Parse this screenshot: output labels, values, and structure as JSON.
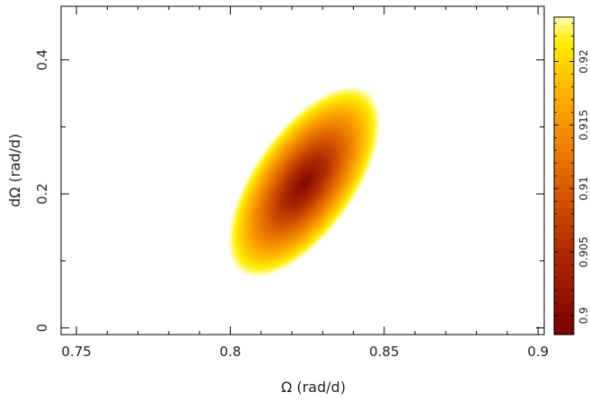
{
  "chart_data": {
    "type": "heatmap",
    "subtype": "filled-contour",
    "xlabel": "Ω (rad/d)",
    "ylabel": "dΩ (rad/d)",
    "xlim": [
      0.745,
      0.902
    ],
    "ylim": [
      -0.01,
      0.48
    ],
    "x_ticks": [
      {
        "value": 0.75,
        "label": "0.75"
      },
      {
        "value": 0.8,
        "label": "0.8"
      },
      {
        "value": 0.85,
        "label": "0.85"
      },
      {
        "value": 0.9,
        "label": "0.9"
      }
    ],
    "y_ticks": [
      {
        "value": 0,
        "label": "0"
      },
      {
        "value": 0.2,
        "label": "0.2"
      },
      {
        "value": 0.4,
        "label": "0.4"
      }
    ],
    "colorbar": {
      "range": [
        0.8985,
        0.9235
      ],
      "ticks": [
        {
          "value": 0.9,
          "label": "0.9"
        },
        {
          "value": 0.905,
          "label": "0.905"
        },
        {
          "value": 0.91,
          "label": "0.91"
        },
        {
          "value": 0.915,
          "label": "0.915"
        },
        {
          "value": 0.92,
          "label": "0.92"
        }
      ],
      "colormap": "heat (dark red → orange → yellow)",
      "position": "right"
    },
    "field": {
      "min_location": {
        "x": 0.824,
        "y": 0.215
      },
      "min_value": 0.8995,
      "max_plotted_value": 0.9235,
      "levels": 26,
      "region_outside_contours": "white"
    },
    "grid": false
  }
}
